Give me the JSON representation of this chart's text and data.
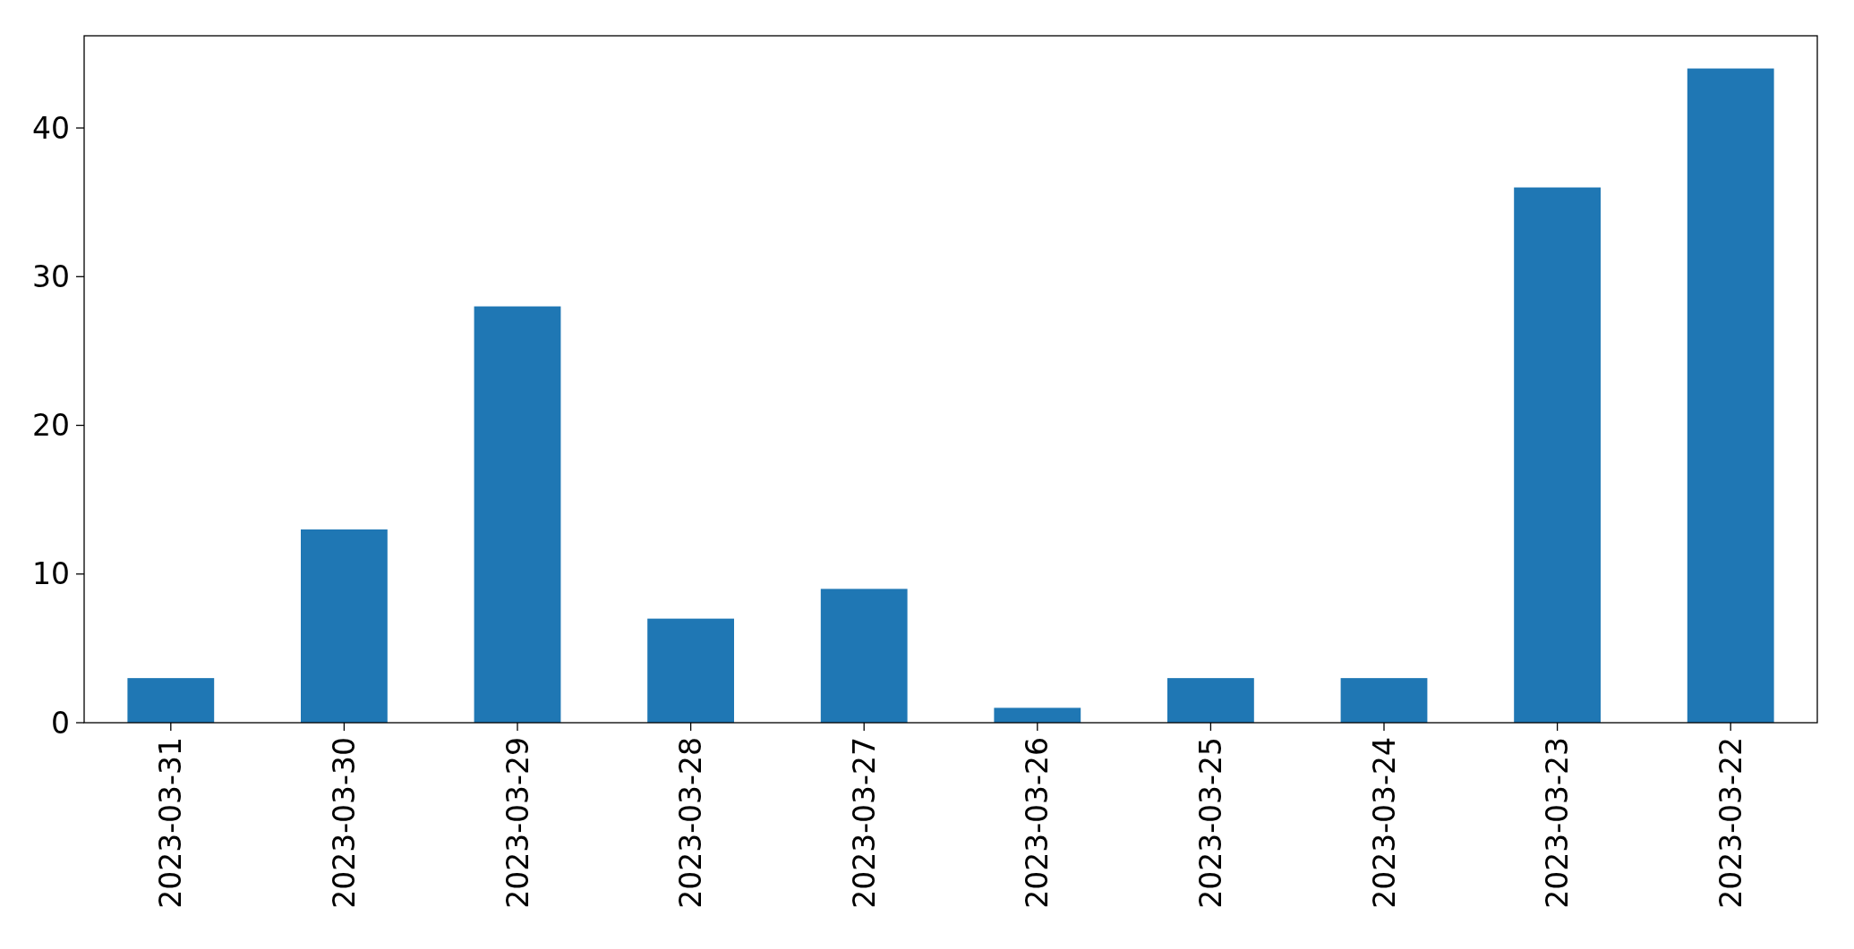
{
  "chart_data": {
    "type": "bar",
    "categories": [
      "2023-03-31",
      "2023-03-30",
      "2023-03-29",
      "2023-03-28",
      "2023-03-27",
      "2023-03-26",
      "2023-03-25",
      "2023-03-24",
      "2023-03-23",
      "2023-03-22"
    ],
    "values": [
      3,
      13,
      28,
      7,
      9,
      1,
      3,
      3,
      36,
      44
    ],
    "color": "#1f77b4",
    "ylim": [
      0,
      46.2
    ],
    "yticks": [
      0,
      10,
      20,
      30,
      40
    ],
    "grid": false
  }
}
